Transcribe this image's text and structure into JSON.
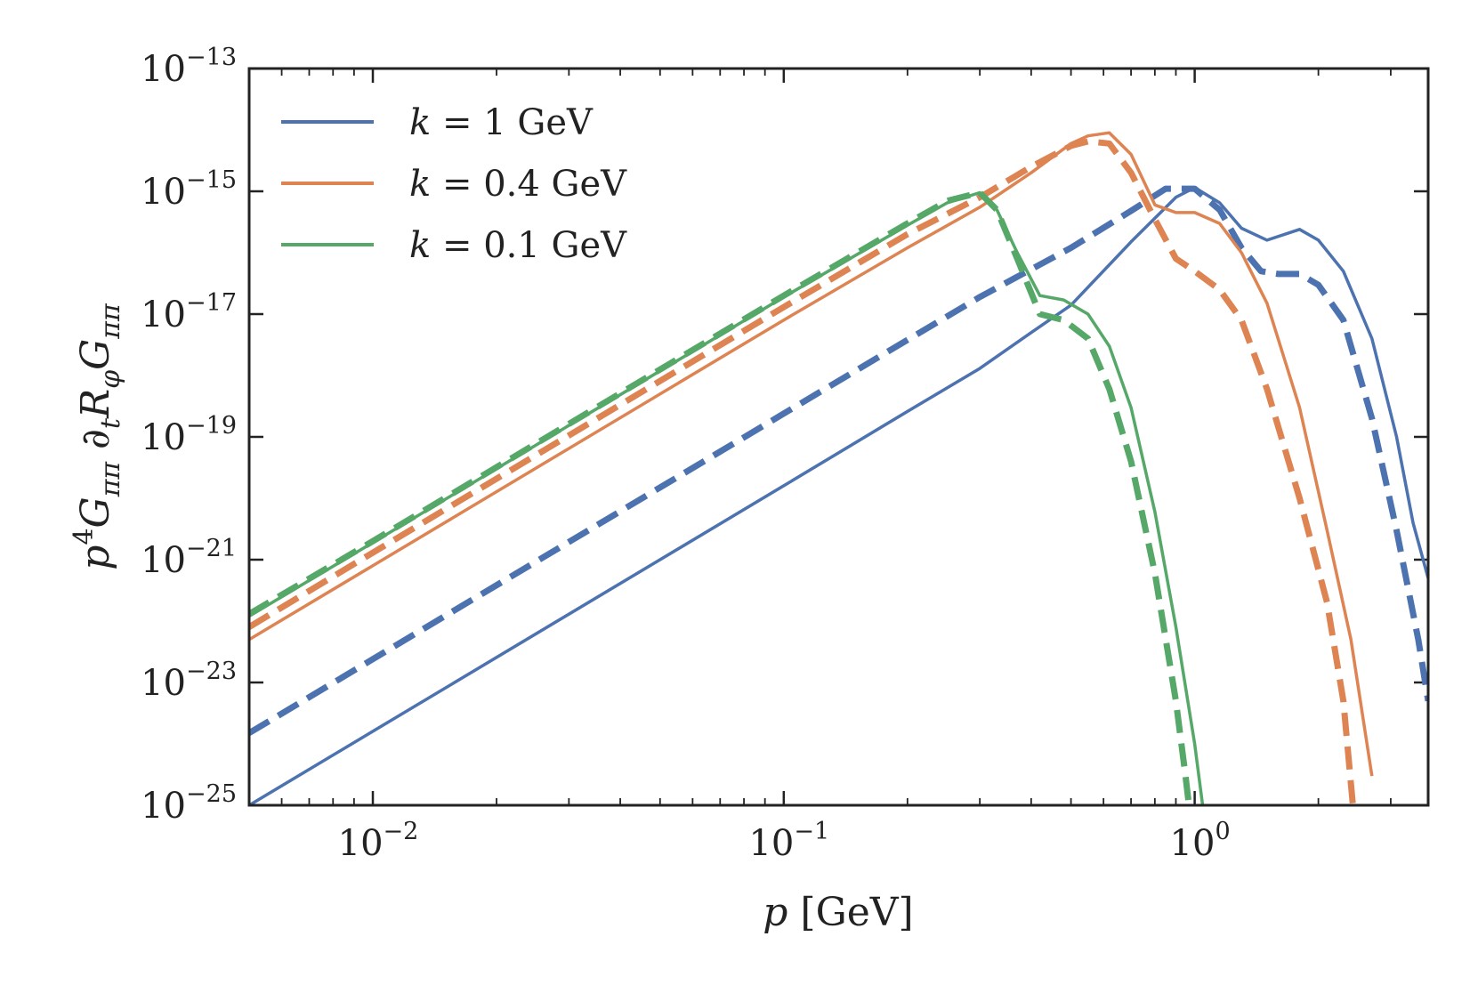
{
  "chart_data": {
    "type": "line",
    "title": "",
    "xlabel": {
      "italic": "p",
      "rest": " [GeV]"
    },
    "ylabel": {
      "parts": [
        {
          "t": "p",
          "i": true
        },
        {
          "t": "4",
          "sup": true
        },
        {
          "t": "G",
          "i": true
        },
        {
          "t": "ππ",
          "sub": true,
          "i": true
        },
        {
          "t": " ∂",
          "i": false
        },
        {
          "t": "t",
          "sub": true,
          "i": true
        },
        {
          "t": "R",
          "i": true
        },
        {
          "t": "φ",
          "sub": true,
          "i": true
        },
        {
          "t": "G",
          "i": true
        },
        {
          "t": "ππ",
          "sub": true,
          "i": true
        }
      ]
    },
    "xscale": "log",
    "yscale": "log",
    "xlim": [
      0.005,
      3.7
    ],
    "ylim": [
      1e-25,
      1e-13
    ],
    "xticks": [
      {
        "value": 0.01,
        "base": "10",
        "exp": "−2"
      },
      {
        "value": 0.1,
        "base": "10",
        "exp": "−1"
      },
      {
        "value": 1,
        "base": "10",
        "exp": "0"
      }
    ],
    "yticks": [
      {
        "value": 1e-25,
        "base": "10",
        "exp": "−25"
      },
      {
        "value": 1e-23,
        "base": "10",
        "exp": "−23"
      },
      {
        "value": 1e-21,
        "base": "10",
        "exp": "−21"
      },
      {
        "value": 1e-19,
        "base": "10",
        "exp": "−19"
      },
      {
        "value": 1e-17,
        "base": "10",
        "exp": "−17"
      },
      {
        "value": 1e-15,
        "base": "10",
        "exp": "−15"
      },
      {
        "value": 1e-13,
        "base": "10",
        "exp": "−13"
      }
    ],
    "legend_position": "top-left",
    "legend": [
      {
        "var": "k",
        "rest": " = 1 GeV",
        "color": "#4c72b0"
      },
      {
        "var": "k",
        "rest": " = 0.4 GeV",
        "color": "#dd8452"
      },
      {
        "var": "k",
        "rest": " = 0.1 GeV",
        "color": "#55a868"
      }
    ],
    "series": [
      {
        "name": "k = 1 GeV (solid)",
        "color": "#4c72b0",
        "style": "solid",
        "points": [
          [
            0.005,
            1e-25
          ],
          [
            0.01,
            1.6e-24
          ],
          [
            0.1,
            1.6e-20
          ],
          [
            0.2,
            2.6e-19
          ],
          [
            0.3,
            1.3e-18
          ],
          [
            0.4,
            5e-18
          ],
          [
            0.5,
            1.4e-17
          ],
          [
            0.7,
            1.5e-16
          ],
          [
            0.9,
            8e-16
          ],
          [
            1.0,
            1.15e-15
          ],
          [
            1.15,
            6.5e-16
          ],
          [
            1.3,
            2.5e-16
          ],
          [
            1.5,
            1.6e-16
          ],
          [
            1.8,
            2.4e-16
          ],
          [
            2.0,
            1.6e-16
          ],
          [
            2.3,
            5e-17
          ],
          [
            2.7,
            4e-18
          ],
          [
            3.1,
            1e-19
          ],
          [
            3.4,
            4e-21
          ],
          [
            3.7,
            5e-22
          ]
        ]
      },
      {
        "name": "k = 1 GeV (dashed)",
        "color": "#4c72b0",
        "style": "dashed",
        "points": [
          [
            0.005,
            1.5e-24
          ],
          [
            0.01,
            2.4e-23
          ],
          [
            0.1,
            2.4e-19
          ],
          [
            0.2,
            3.8e-18
          ],
          [
            0.3,
            1.9e-17
          ],
          [
            0.5,
            1.2e-16
          ],
          [
            0.7,
            4.8e-16
          ],
          [
            0.85,
            1.1e-15
          ],
          [
            1.0,
            1.1e-15
          ],
          [
            1.15,
            5e-16
          ],
          [
            1.3,
            1.2e-16
          ],
          [
            1.45,
            5e-17
          ],
          [
            1.6,
            4.5e-17
          ],
          [
            1.8,
            4.5e-17
          ],
          [
            2.0,
            3e-17
          ],
          [
            2.3,
            8e-18
          ],
          [
            2.7,
            2e-19
          ],
          [
            3.1,
            3e-21
          ],
          [
            3.5,
            5e-23
          ],
          [
            3.7,
            5e-24
          ]
        ]
      },
      {
        "name": "k = 0.4 GeV (solid)",
        "color": "#dd8452",
        "style": "solid",
        "points": [
          [
            0.005,
            5e-23
          ],
          [
            0.01,
            8e-22
          ],
          [
            0.1,
            8e-18
          ],
          [
            0.2,
            1.2e-16
          ],
          [
            0.3,
            5.5e-16
          ],
          [
            0.4,
            2e-15
          ],
          [
            0.5,
            6e-15
          ],
          [
            0.55,
            8e-15
          ],
          [
            0.62,
            9e-15
          ],
          [
            0.7,
            4e-15
          ],
          [
            0.8,
            6e-16
          ],
          [
            0.9,
            4.5e-16
          ],
          [
            1.0,
            4.5e-16
          ],
          [
            1.15,
            3e-16
          ],
          [
            1.3,
            1e-16
          ],
          [
            1.5,
            1.5e-17
          ],
          [
            1.8,
            3e-19
          ],
          [
            2.1,
            3e-21
          ],
          [
            2.4,
            5e-23
          ],
          [
            2.7,
            3e-25
          ]
        ]
      },
      {
        "name": "k = 0.4 GeV (dashed)",
        "color": "#dd8452",
        "style": "dashed",
        "points": [
          [
            0.005,
            8e-23
          ],
          [
            0.01,
            1.3e-21
          ],
          [
            0.1,
            1.3e-17
          ],
          [
            0.2,
            2e-16
          ],
          [
            0.3,
            8e-16
          ],
          [
            0.4,
            2.5e-15
          ],
          [
            0.5,
            5.5e-15
          ],
          [
            0.55,
            6.5e-15
          ],
          [
            0.62,
            6e-15
          ],
          [
            0.7,
            2e-15
          ],
          [
            0.8,
            3.5e-16
          ],
          [
            0.9,
            8e-17
          ],
          [
            1.0,
            5e-17
          ],
          [
            1.15,
            2.5e-17
          ],
          [
            1.3,
            8e-18
          ],
          [
            1.5,
            6e-19
          ],
          [
            1.8,
            1e-20
          ],
          [
            2.1,
            2e-22
          ],
          [
            2.3,
            5e-24
          ],
          [
            2.45,
            5e-26
          ]
        ]
      },
      {
        "name": "k = 0.1 GeV (solid)",
        "color": "#55a868",
        "style": "solid",
        "points": [
          [
            0.005,
            1.2e-22
          ],
          [
            0.01,
            1.9e-21
          ],
          [
            0.1,
            1.9e-17
          ],
          [
            0.2,
            2.8e-16
          ],
          [
            0.25,
            6.5e-16
          ],
          [
            0.3,
            9.5e-16
          ],
          [
            0.33,
            5e-16
          ],
          [
            0.37,
            1e-16
          ],
          [
            0.42,
            2e-17
          ],
          [
            0.48,
            1.7e-17
          ],
          [
            0.55,
            1e-17
          ],
          [
            0.62,
            3e-18
          ],
          [
            0.7,
            3e-19
          ],
          [
            0.8,
            6e-21
          ],
          [
            0.9,
            8e-23
          ],
          [
            1.0,
            1e-24
          ],
          [
            1.05,
            8e-26
          ]
        ]
      },
      {
        "name": "k = 0.1 GeV (dashed)",
        "color": "#55a868",
        "style": "dashed",
        "points": [
          [
            0.005,
            1.3e-22
          ],
          [
            0.01,
            2e-21
          ],
          [
            0.1,
            2e-17
          ],
          [
            0.2,
            3e-16
          ],
          [
            0.25,
            7e-16
          ],
          [
            0.3,
            9.5e-16
          ],
          [
            0.33,
            5e-16
          ],
          [
            0.37,
            8e-17
          ],
          [
            0.42,
            1e-17
          ],
          [
            0.48,
            8e-18
          ],
          [
            0.55,
            4e-18
          ],
          [
            0.62,
            6e-19
          ],
          [
            0.7,
            4e-20
          ],
          [
            0.8,
            6e-22
          ],
          [
            0.9,
            5e-24
          ],
          [
            0.95,
            3e-25
          ],
          [
            0.98,
            5e-26
          ]
        ]
      }
    ]
  }
}
